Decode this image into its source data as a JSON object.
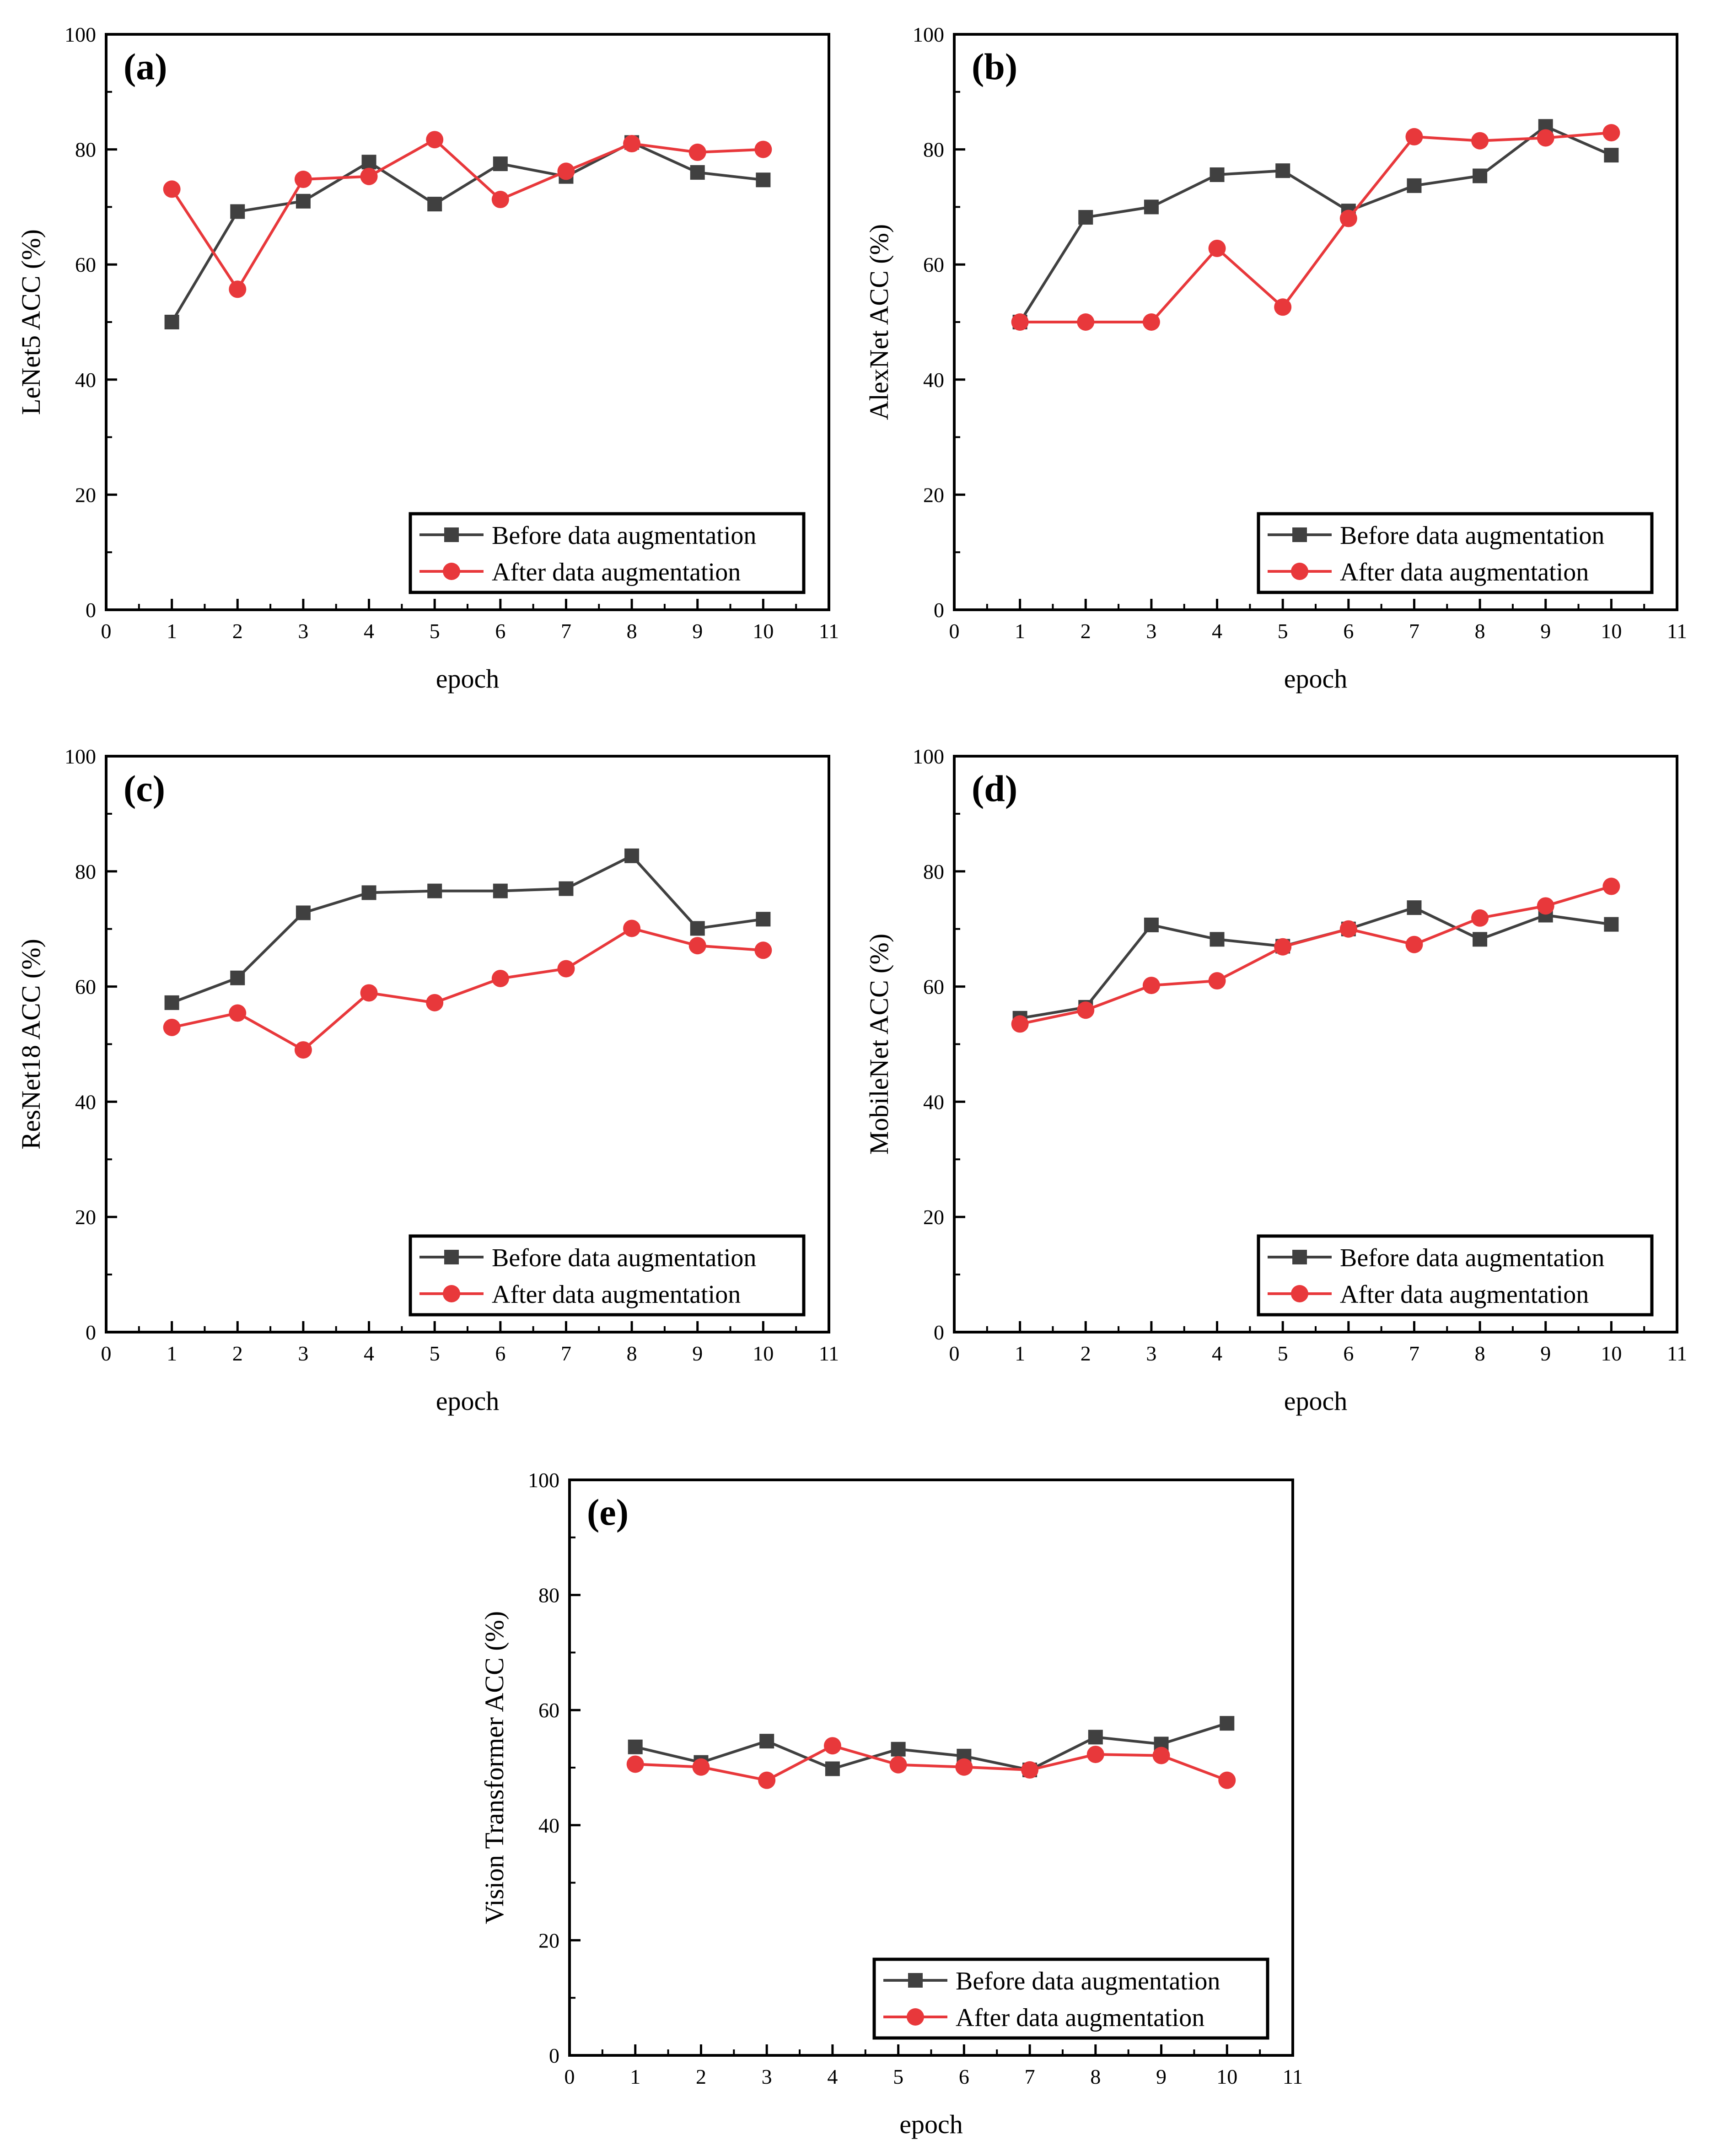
{
  "figure": {
    "colors": {
      "before": "#404040",
      "after": "#e8383b",
      "axis": "#000000"
    },
    "markers": {
      "before": "square",
      "after": "circle"
    }
  },
  "chart_data": [
    {
      "type": "line",
      "panel_label": "(a)",
      "xlabel": "epoch",
      "ylabel": "LeNet5 ACC (%)",
      "xlim": [
        0,
        11
      ],
      "ylim": [
        0,
        100
      ],
      "xticks": [
        0,
        1,
        2,
        3,
        4,
        5,
        6,
        7,
        8,
        9,
        10,
        11
      ],
      "yticks": [
        0,
        20,
        40,
        60,
        80,
        100
      ],
      "legend_position": "lower-right",
      "x": [
        1,
        2,
        3,
        4,
        5,
        6,
        7,
        8,
        9,
        10
      ],
      "series": [
        {
          "name": "Before data augmentation",
          "values": [
            50.0,
            69.2,
            71.0,
            77.8,
            70.5,
            77.5,
            75.3,
            81.2,
            76.0,
            74.7
          ]
        },
        {
          "name": "After data augmentation",
          "values": [
            73.1,
            55.7,
            74.8,
            75.3,
            81.7,
            71.3,
            76.2,
            81.0,
            79.5,
            80.0
          ]
        }
      ]
    },
    {
      "type": "line",
      "panel_label": "(b)",
      "xlabel": "epoch",
      "ylabel": "AlexNet ACC (%)",
      "xlim": [
        0,
        11
      ],
      "ylim": [
        0,
        100
      ],
      "xticks": [
        0,
        1,
        2,
        3,
        4,
        5,
        6,
        7,
        8,
        9,
        10,
        11
      ],
      "yticks": [
        0,
        20,
        40,
        60,
        80,
        100
      ],
      "legend_position": "lower-right",
      "x": [
        1,
        2,
        3,
        4,
        5,
        6,
        7,
        8,
        9,
        10
      ],
      "series": [
        {
          "name": "Before data augmentation",
          "values": [
            50.0,
            68.2,
            70.0,
            75.6,
            76.3,
            69.3,
            73.7,
            75.4,
            84.0,
            79.0
          ]
        },
        {
          "name": "After data augmentation",
          "values": [
            50.0,
            50.0,
            50.0,
            62.8,
            52.6,
            68.0,
            82.2,
            81.5,
            82.0,
            82.9
          ]
        }
      ]
    },
    {
      "type": "line",
      "panel_label": "(c)",
      "xlabel": "epoch",
      "ylabel": "ResNet18 ACC (%)",
      "xlim": [
        0,
        11
      ],
      "ylim": [
        0,
        100
      ],
      "xticks": [
        0,
        1,
        2,
        3,
        4,
        5,
        6,
        7,
        8,
        9,
        10,
        11
      ],
      "yticks": [
        0,
        20,
        40,
        60,
        80,
        100
      ],
      "legend_position": "lower-right",
      "x": [
        1,
        2,
        3,
        4,
        5,
        6,
        7,
        8,
        9,
        10
      ],
      "series": [
        {
          "name": "Before data augmentation",
          "values": [
            57.2,
            61.5,
            72.8,
            76.3,
            76.6,
            76.6,
            77.0,
            82.7,
            70.1,
            71.7
          ]
        },
        {
          "name": "After data augmentation",
          "values": [
            52.9,
            55.4,
            49.0,
            58.9,
            57.2,
            61.4,
            63.1,
            70.1,
            67.1,
            66.3
          ]
        }
      ]
    },
    {
      "type": "line",
      "panel_label": "(d)",
      "xlabel": "epoch",
      "ylabel": "MobileNet ACC (%)",
      "xlim": [
        0,
        11
      ],
      "ylim": [
        0,
        100
      ],
      "xticks": [
        0,
        1,
        2,
        3,
        4,
        5,
        6,
        7,
        8,
        9,
        10,
        11
      ],
      "yticks": [
        0,
        20,
        40,
        60,
        80,
        100
      ],
      "legend_position": "lower-right",
      "x": [
        1,
        2,
        3,
        4,
        5,
        6,
        7,
        8,
        9,
        10
      ],
      "series": [
        {
          "name": "Before data augmentation",
          "values": [
            54.5,
            56.4,
            70.7,
            68.2,
            67.0,
            70.0,
            73.7,
            68.2,
            72.4,
            70.8
          ]
        },
        {
          "name": "After data augmentation",
          "values": [
            53.5,
            55.9,
            60.2,
            61.0,
            66.9,
            70.0,
            67.3,
            71.9,
            74.0,
            77.4
          ]
        }
      ]
    },
    {
      "type": "line",
      "panel_label": "(e)",
      "xlabel": "epoch",
      "ylabel": "Vision Transformer ACC (%)",
      "xlim": [
        0,
        11
      ],
      "ylim": [
        0,
        100
      ],
      "xticks": [
        0,
        1,
        2,
        3,
        4,
        5,
        6,
        7,
        8,
        9,
        10,
        11
      ],
      "yticks": [
        0,
        20,
        40,
        60,
        80,
        100
      ],
      "legend_position": "lower-right",
      "x": [
        1,
        2,
        3,
        4,
        5,
        6,
        7,
        8,
        9,
        10
      ],
      "series": [
        {
          "name": "Before data augmentation",
          "values": [
            53.6,
            50.9,
            54.6,
            49.8,
            53.2,
            52.0,
            49.6,
            55.3,
            54.1,
            57.7
          ]
        },
        {
          "name": "After data augmentation",
          "values": [
            50.6,
            50.1,
            47.8,
            53.8,
            50.5,
            50.1,
            49.6,
            52.3,
            52.1,
            47.8
          ]
        }
      ]
    }
  ]
}
